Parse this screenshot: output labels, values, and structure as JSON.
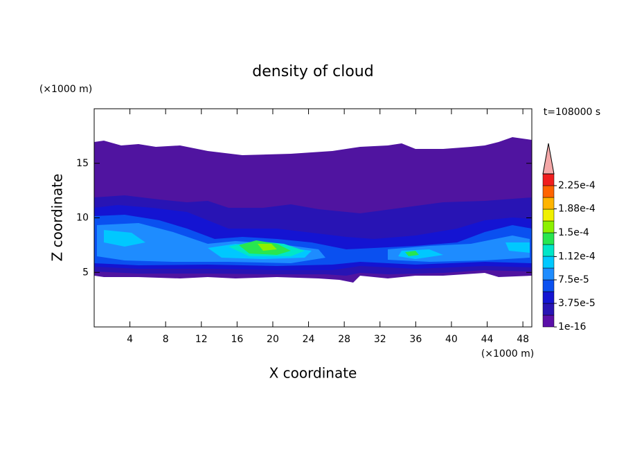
{
  "chart_data": {
    "type": "contour",
    "title": "density of cloud",
    "xlabel": "X coordinate",
    "ylabel": "Z coordinate",
    "xunit": "(×1000 m)",
    "yunit": "(×1000 m)",
    "annotation": "t=108000 s",
    "xlim": [
      0,
      49
    ],
    "ylim": [
      0,
      20
    ],
    "xticks": [
      4,
      8,
      12,
      16,
      20,
      24,
      28,
      32,
      36,
      40,
      44,
      48
    ],
    "yticks": [
      5,
      10,
      15
    ],
    "colorbar": {
      "clim": [
        1e-16,
        0.00024375
      ],
      "extend_color": "#f4a8a8",
      "colors": [
        "#5b0fa8",
        "#2814b4",
        "#1414d2",
        "#0a50f0",
        "#1e8cff",
        "#00c8ff",
        "#00e6c8",
        "#28e650",
        "#8cf000",
        "#f0f000",
        "#ffb400",
        "#ff6400",
        "#f01e1e"
      ],
      "ticks": [
        1e-16,
        {
          "value": 3.75e-05,
          "label": "3.75e-5"
        },
        {
          "value": 7.5e-05,
          "label": "7.5e-5"
        },
        {
          "value": 0.000112,
          "label": "1.12e-4"
        },
        {
          "value": 0.00015,
          "label": "1.5e-4"
        },
        {
          "value": 0.000188,
          "label": "1.88e-4"
        },
        {
          "value": 0.000225,
          "label": "2.25e-4"
        }
      ]
    }
  }
}
